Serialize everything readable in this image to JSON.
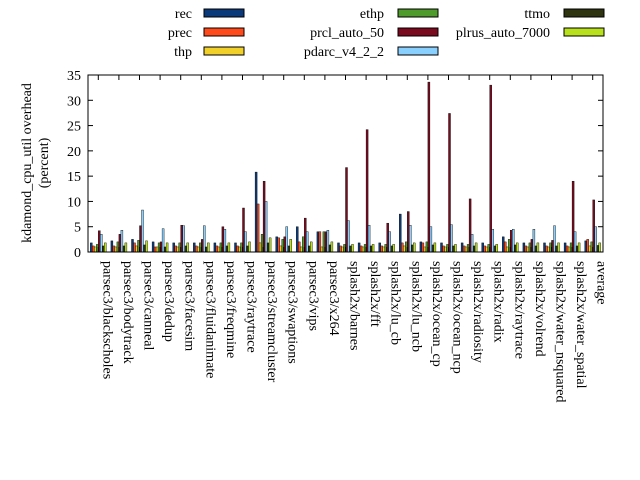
{
  "chart_data": {
    "type": "bar",
    "ylabel_line1": "kdamond_cpu_util overhead",
    "ylabel_line2": "(percent)",
    "ylim": [
      0,
      35
    ],
    "yticks": [
      0,
      5,
      10,
      15,
      20,
      25,
      30,
      35
    ],
    "grid": false,
    "legend_position": "top",
    "categories": [
      "parsec3/blackscholes",
      "parsec3/bodytrack",
      "parsec3/canneal",
      "parsec3/dedup",
      "parsec3/facesim",
      "parsec3/fluidanimate",
      "parsec3/freqmine",
      "parsec3/raytrace",
      "parsec3/streamcluster",
      "parsec3/swaptions",
      "parsec3/vips",
      "parsec3/x264",
      "splash2x/barnes",
      "splash2x/fft",
      "splash2x/lu_cb",
      "splash2x/lu_ncb",
      "splash2x/ocean_cp",
      "splash2x/ocean_ncp",
      "splash2x/radiosity",
      "splash2x/radix",
      "splash2x/raytrace",
      "splash2x/volrend",
      "splash2x/water_nsquared",
      "splash2x/water_spatial",
      "average"
    ],
    "series": [
      {
        "name": "rec",
        "color": "#0b3a7a",
        "values": [
          1.8,
          2.2,
          2.5,
          2.0,
          1.8,
          1.8,
          1.8,
          1.8,
          15.8,
          3.0,
          5.0,
          4.0,
          1.8,
          1.8,
          1.8,
          7.5,
          2.0,
          1.8,
          1.8,
          1.8,
          3.0,
          1.8,
          1.8,
          1.8,
          2.2
        ]
      },
      {
        "name": "prec",
        "color": "#ff4a1c",
        "values": [
          1.2,
          1.2,
          1.8,
          1.0,
          1.2,
          1.2,
          1.2,
          1.2,
          9.5,
          2.8,
          2.0,
          4.0,
          1.2,
          1.2,
          1.2,
          1.8,
          1.8,
          1.2,
          1.2,
          1.2,
          2.0,
          1.2,
          1.2,
          1.2,
          2.5
        ]
      },
      {
        "name": "thp",
        "color": "#f2d02a",
        "values": [
          1.0,
          1.0,
          1.2,
          1.0,
          1.0,
          1.0,
          1.0,
          1.0,
          1.8,
          1.2,
          1.0,
          1.0,
          1.0,
          1.0,
          1.0,
          1.2,
          1.0,
          1.0,
          1.0,
          1.0,
          1.0,
          1.0,
          1.0,
          1.0,
          1.2
        ]
      },
      {
        "name": "ethp",
        "color": "#4e9a2a",
        "values": [
          1.5,
          2.0,
          2.3,
          1.8,
          1.8,
          1.8,
          1.8,
          1.8,
          3.5,
          2.5,
          3.0,
          4.0,
          1.5,
          1.5,
          1.5,
          2.0,
          2.0,
          1.5,
          1.5,
          1.5,
          2.5,
          1.8,
          1.8,
          1.8,
          2.0
        ]
      },
      {
        "name": "prcl_auto_50",
        "color": "#7a0a1e",
        "values": [
          4.2,
          3.5,
          5.2,
          2.0,
          5.3,
          2.5,
          5.0,
          8.7,
          14.0,
          3.0,
          6.7,
          4.0,
          16.7,
          24.2,
          5.7,
          8.0,
          33.6,
          27.4,
          10.5,
          33.0,
          4.3,
          2.5,
          2.3,
          14.0,
          10.3
        ]
      },
      {
        "name": "pdarc_v4_2_2",
        "color": "#8ad0ff",
        "values": [
          3.5,
          4.3,
          8.3,
          4.6,
          5.2,
          5.2,
          4.5,
          4.0,
          10.0,
          5.0,
          4.0,
          4.3,
          6.2,
          5.3,
          4.0,
          5.3,
          5.0,
          5.4,
          3.5,
          4.5,
          4.5,
          4.5,
          5.2,
          4.0,
          5.0
        ]
      },
      {
        "name": "ttmo",
        "color": "#2e3310",
        "values": [
          1.2,
          1.2,
          1.4,
          1.0,
          1.2,
          1.0,
          1.2,
          1.2,
          1.8,
          1.2,
          1.2,
          1.4,
          1.2,
          1.2,
          1.2,
          1.4,
          1.4,
          1.2,
          1.2,
          1.2,
          1.4,
          1.2,
          1.2,
          1.2,
          1.3
        ]
      },
      {
        "name": "plrus_auto_7000",
        "color": "#b8e01c",
        "values": [
          1.8,
          1.8,
          2.2,
          1.8,
          1.8,
          1.8,
          1.8,
          2.0,
          2.8,
          2.5,
          2.0,
          2.0,
          1.5,
          1.5,
          1.5,
          1.8,
          1.8,
          1.5,
          1.8,
          1.5,
          1.8,
          1.8,
          1.8,
          1.8,
          1.8
        ]
      }
    ]
  }
}
